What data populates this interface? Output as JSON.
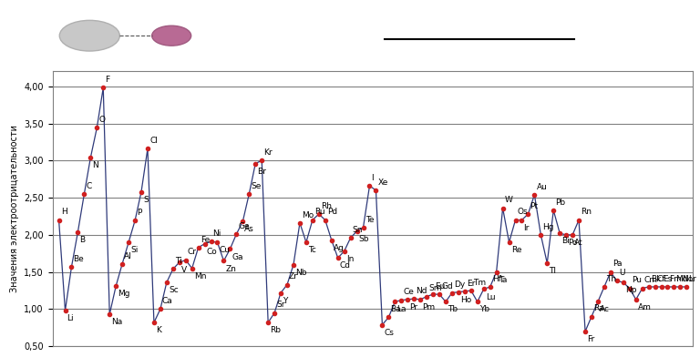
{
  "chart_data": {
    "type": "line",
    "y_label": "Значения электроотрицательности",
    "categories": [
      "H",
      "Li",
      "Be",
      "B",
      "C",
      "N",
      "O",
      "F",
      "Na",
      "Mg",
      "Al",
      "Si",
      "P",
      "S",
      "Cl",
      "K",
      "Ca",
      "Sc",
      "Ti",
      "V",
      "Cr",
      "Mn",
      "Fe",
      "Co",
      "Ni",
      "Cu",
      "Zn",
      "Ga",
      "Ge",
      "As",
      "Se",
      "Br",
      "Kr",
      "Rb",
      "Sr",
      "Y",
      "Zr",
      "Nb",
      "Mo",
      "Tc",
      "Ru",
      "Rh",
      "Pd",
      "Ag",
      "Cd",
      "In",
      "Sn",
      "Sb",
      "Te",
      "I",
      "Xe",
      "Cs",
      "Ba",
      "La",
      "Ce",
      "Pr",
      "Nd",
      "Pm",
      "Sm",
      "Eu",
      "Gd",
      "Tb",
      "Dy",
      "Ho",
      "Er",
      "Tm",
      "Yb",
      "Lu",
      "Hf",
      "Ta",
      "W",
      "Re",
      "Os",
      "Ir",
      "Pt",
      "Au",
      "Hg",
      "Tl",
      "Pb",
      "Bi",
      "Po",
      "At",
      "Rn",
      "Fr",
      "Ra",
      "Ac",
      "Th",
      "Pa",
      "U",
      "Np",
      "Pu",
      "Am",
      "Cm",
      "Bk",
      "Cf",
      "Es",
      "Fm",
      "Md",
      "No",
      "Lr"
    ],
    "values": [
      2.2,
      0.98,
      1.57,
      2.04,
      2.55,
      3.04,
      3.44,
      3.98,
      0.93,
      1.31,
      1.61,
      1.9,
      2.19,
      2.58,
      3.16,
      0.82,
      1.0,
      1.36,
      1.54,
      1.63,
      1.66,
      1.55,
      1.83,
      1.88,
      1.91,
      1.9,
      1.65,
      1.81,
      2.01,
      2.18,
      2.55,
      2.96,
      3.0,
      0.82,
      0.95,
      1.22,
      1.33,
      1.6,
      2.16,
      1.9,
      2.2,
      2.28,
      2.2,
      1.93,
      1.69,
      1.78,
      1.96,
      2.05,
      2.1,
      2.66,
      2.6,
      0.79,
      0.89,
      1.1,
      1.12,
      1.13,
      1.14,
      1.13,
      1.17,
      1.2,
      1.2,
      1.1,
      1.22,
      1.23,
      1.24,
      1.25,
      1.1,
      1.27,
      1.3,
      1.5,
      2.36,
      1.9,
      2.2,
      2.2,
      2.28,
      2.54,
      2.0,
      1.62,
      2.33,
      2.02,
      2.0,
      2.0,
      2.2,
      0.7,
      0.9,
      1.1,
      1.3,
      1.5,
      1.38,
      1.36,
      1.28,
      1.13,
      1.28,
      1.3,
      1.3,
      1.3,
      1.3,
      1.3,
      1.3,
      1.3
    ],
    "color": "#2f3a7a",
    "marker": "circle",
    "ylim": [
      0.5,
      4.2
    ],
    "yticks": [
      {
        "value": 0.5,
        "label": "0,50"
      },
      {
        "value": 1.0,
        "label": "1,00"
      },
      {
        "value": 1.5,
        "label": "1,50"
      },
      {
        "value": 2.0,
        "label": "2,00"
      },
      {
        "value": 2.5,
        "label": "2,50"
      },
      {
        "value": 3.0,
        "label": "3,00"
      },
      {
        "value": 3.5,
        "label": "3,50"
      },
      {
        "value": 4.0,
        "label": "4,00"
      }
    ],
    "grid": true,
    "tick_labels": "y"
  }
}
